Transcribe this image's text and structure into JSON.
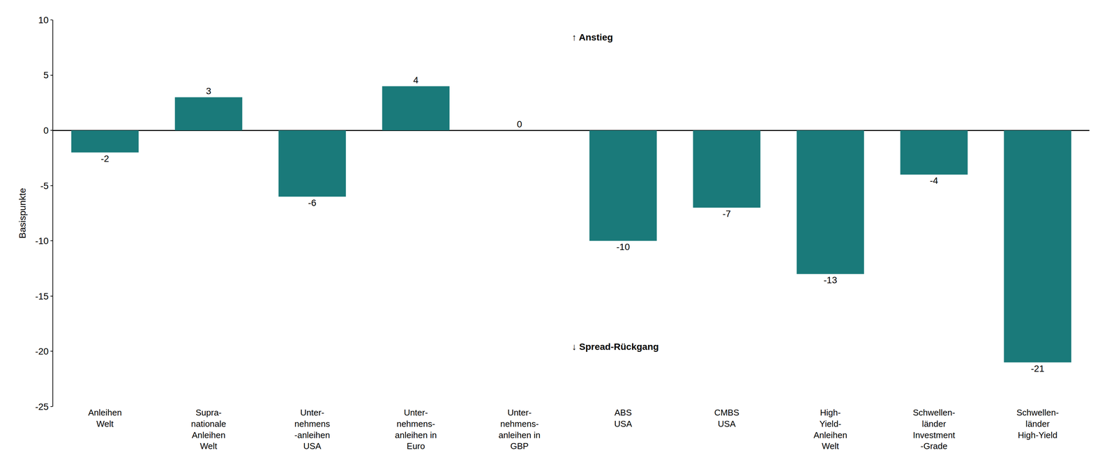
{
  "chart_data": {
    "type": "bar",
    "categories": [
      "Anleihen\nWelt",
      "Supra-\nnationale\nAnleihen\nWelt",
      "Unter-\nnehmens\n-anleihen\nUSA",
      "Unter-\nnehmens-\nanleihen in\nEuro",
      "Unter-\nnehmens-\nanleihen in\nGBP",
      "ABS\nUSA",
      "CMBS\nUSA",
      "High-\nYield-\nAnleihen\nWelt",
      "Schwellen-\nländer\nInvestment\n-Grade",
      "Schwellen-\nländer\nHigh-Yield"
    ],
    "values": [
      -2,
      3,
      -6,
      4,
      0,
      -10,
      -7,
      -13,
      -4,
      -21
    ],
    "color": "#1a7a7a",
    "ylim": [
      -25,
      10
    ],
    "yticks": [
      -25,
      -20,
      -15,
      -10,
      -5,
      0,
      5,
      10
    ],
    "ylabel": "Basispunkte",
    "annotations": [
      "↑ Anstieg",
      "↓ Spread-Rückgang"
    ],
    "data_labels": true,
    "grid": false
  }
}
